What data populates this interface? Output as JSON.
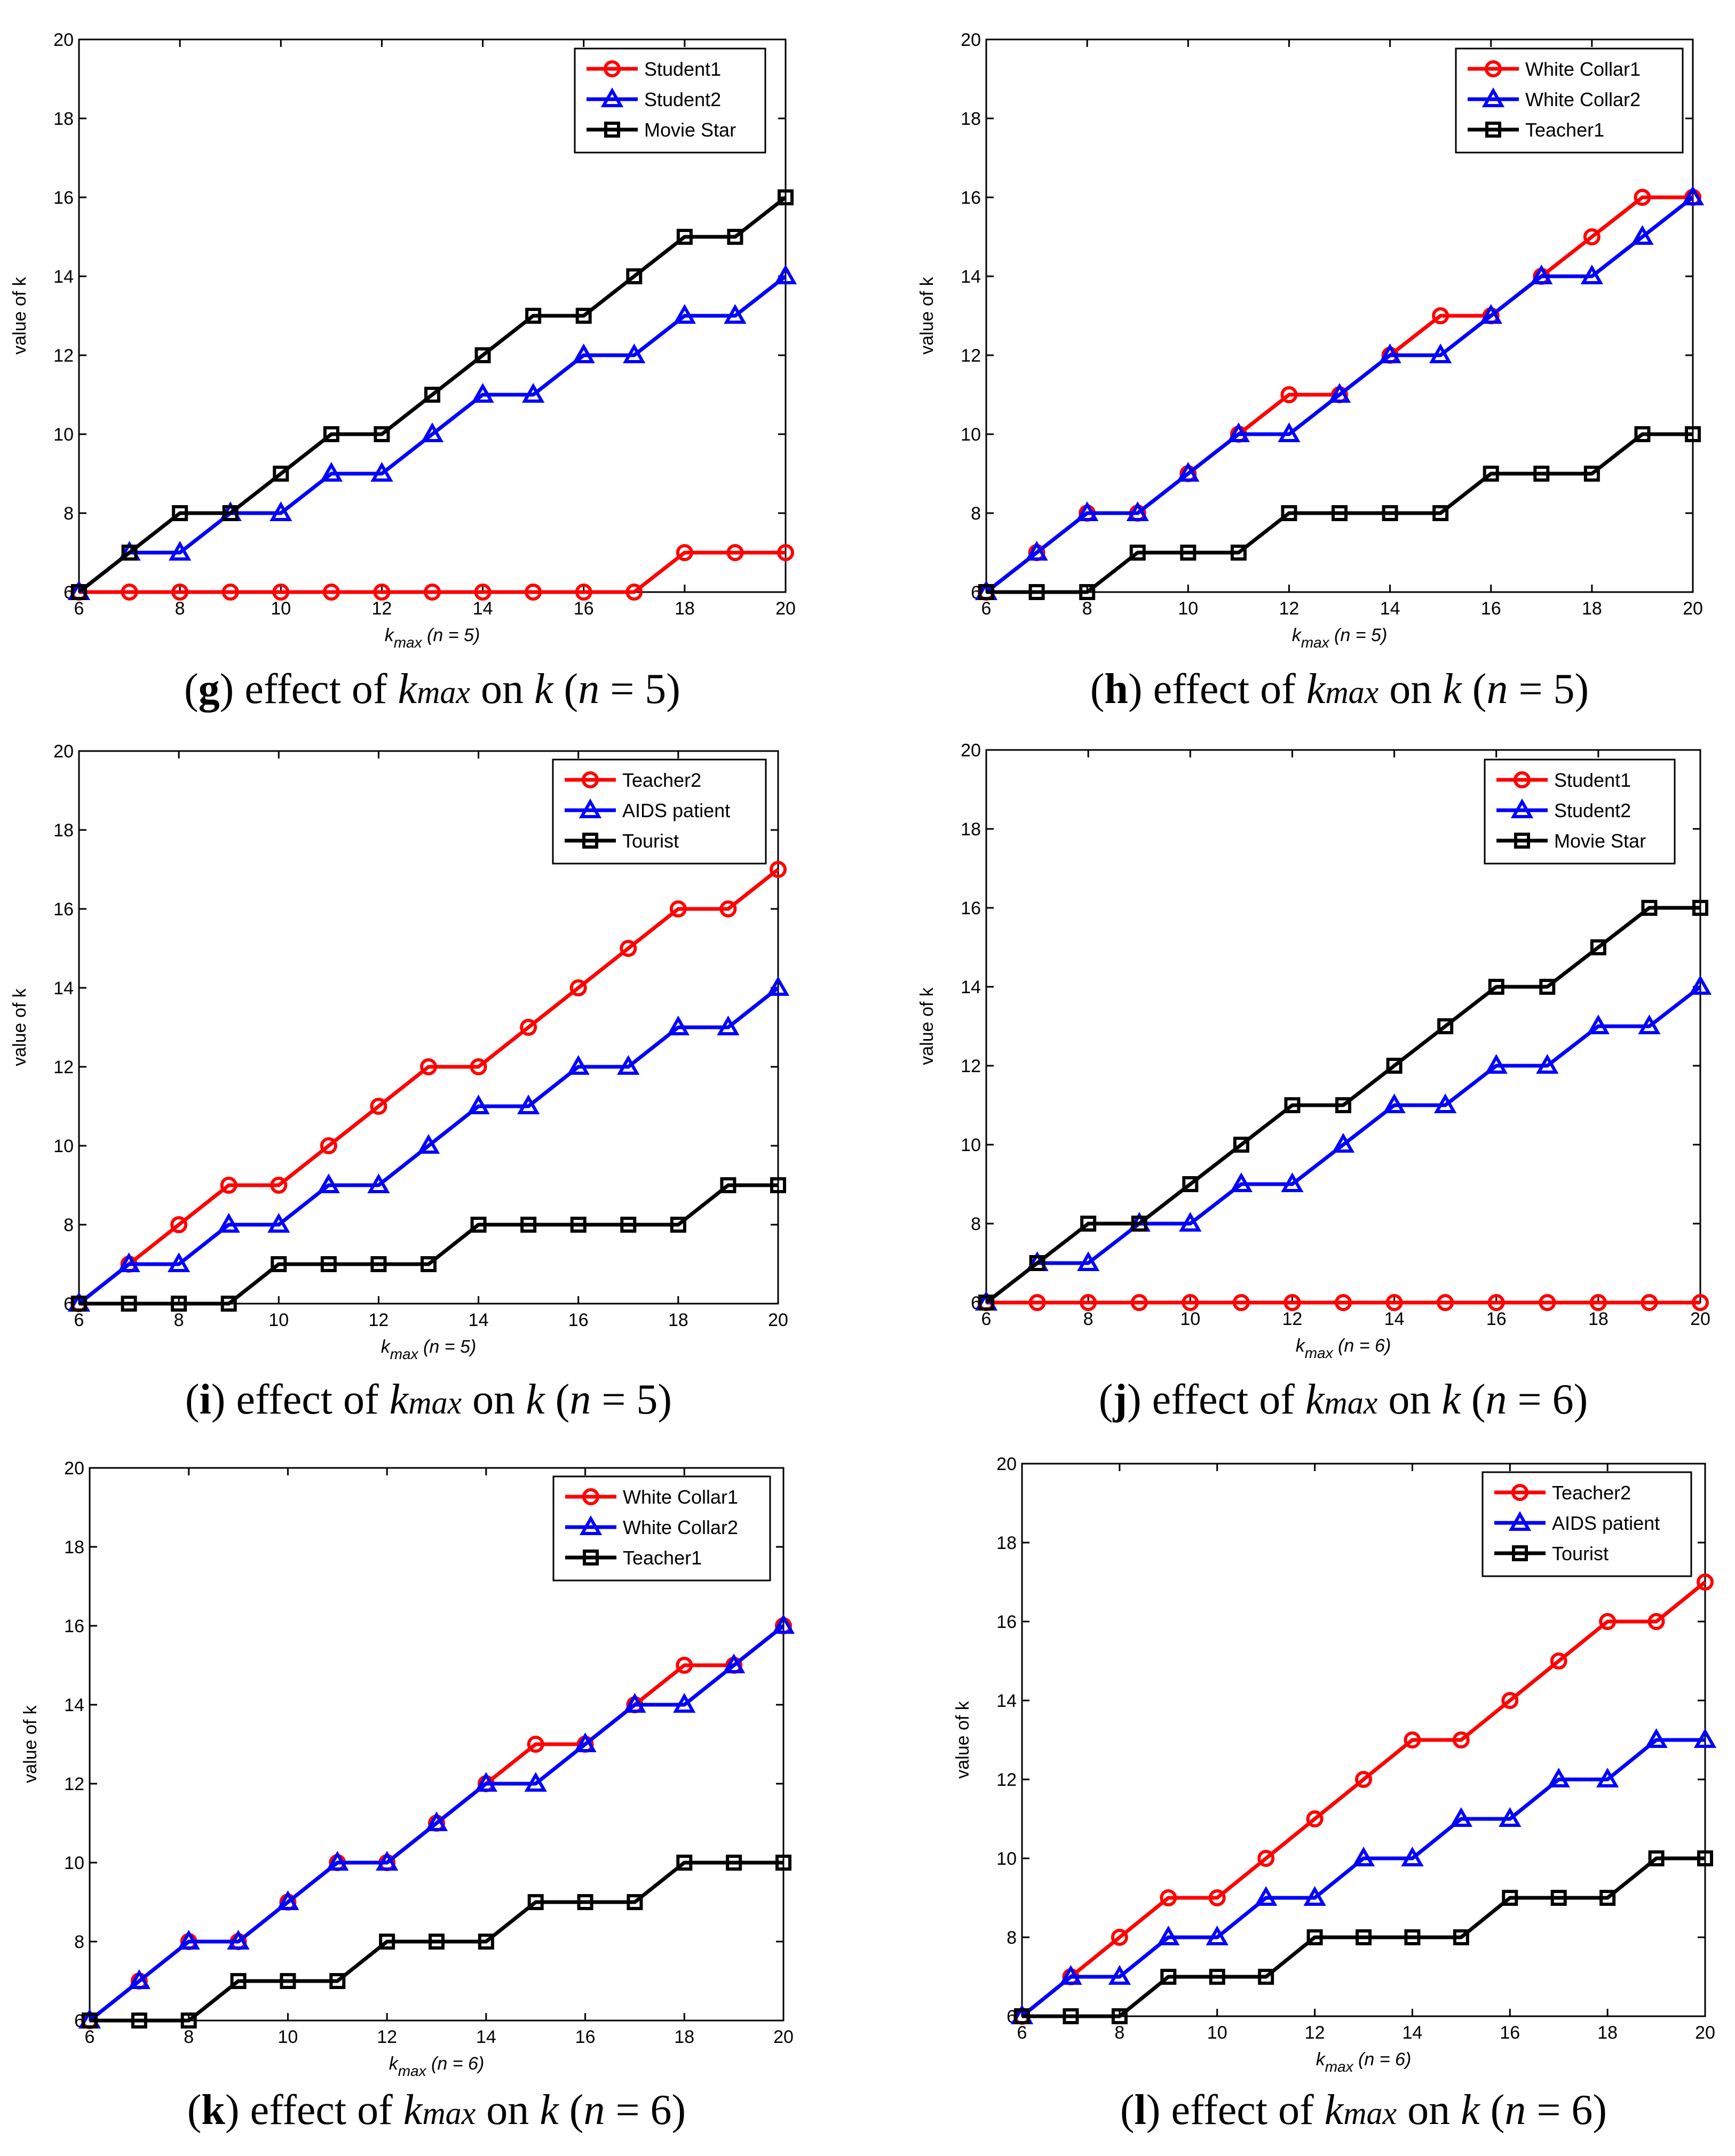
{
  "figure": {
    "colors": {
      "red": "#ff0000",
      "blue": "#0000ff",
      "black": "#000000"
    },
    "marker_icons": [
      "circle-marker-icon",
      "triangle-marker-icon",
      "square-marker-icon"
    ]
  },
  "chart_data": [
    {
      "id": "g",
      "type": "line",
      "caption": {
        "letter": "g",
        "text_pre": ") effect of ",
        "kmax_k": "k",
        "kmax_sub": "max",
        "text_on": " on ",
        "k": "k",
        "paren_open": " (",
        "n": "n",
        "eq": " = 5)"
      },
      "xlabel": {
        "main": "k",
        "sub": "max",
        "rest": " (n = 5)"
      },
      "ylabel": "value of k",
      "xlim": [
        6,
        20
      ],
      "ylim": [
        6,
        20
      ],
      "xticks": [
        "6",
        "8",
        "10",
        "12",
        "14",
        "16",
        "18",
        "20"
      ],
      "yticks": [
        "6",
        "8",
        "10",
        "12",
        "14",
        "16",
        "18",
        "20"
      ],
      "legend_position": "top-right",
      "x": [
        6,
        7,
        8,
        9,
        10,
        11,
        12,
        13,
        14,
        15,
        16,
        17,
        18,
        19,
        20
      ],
      "series": [
        {
          "name": "Student1",
          "color": "#ff0000",
          "marker": "circle",
          "values": [
            6,
            6,
            6,
            6,
            6,
            6,
            6,
            6,
            6,
            6,
            6,
            6,
            7,
            7,
            7
          ]
        },
        {
          "name": "Student2",
          "color": "#0000ff",
          "marker": "triangle",
          "values": [
            6,
            7,
            7,
            8,
            8,
            9,
            9,
            10,
            11,
            11,
            12,
            12,
            13,
            13,
            14
          ]
        },
        {
          "name": "Movie Star",
          "color": "#000000",
          "marker": "square",
          "values": [
            6,
            7,
            8,
            8,
            9,
            10,
            10,
            11,
            12,
            13,
            13,
            14,
            15,
            15,
            16
          ]
        }
      ]
    },
    {
      "id": "h",
      "type": "line",
      "caption": {
        "letter": "h",
        "text_pre": ") effect of ",
        "kmax_k": "k",
        "kmax_sub": "max",
        "text_on": " on ",
        "k": "k",
        "paren_open": " (",
        "n": "n",
        "eq": " = 5)"
      },
      "xlabel": {
        "main": "k",
        "sub": "max",
        "rest": " (n = 5)"
      },
      "ylabel": "value of k",
      "xlim": [
        6,
        20
      ],
      "ylim": [
        6,
        20
      ],
      "xticks": [
        "6",
        "8",
        "10",
        "12",
        "14",
        "16",
        "18",
        "20"
      ],
      "yticks": [
        "6",
        "8",
        "10",
        "12",
        "14",
        "16",
        "18",
        "20"
      ],
      "legend_position": "top-right",
      "x": [
        6,
        7,
        8,
        9,
        10,
        11,
        12,
        13,
        14,
        15,
        16,
        17,
        18,
        19,
        20
      ],
      "series": [
        {
          "name": "White Collar1",
          "color": "#ff0000",
          "marker": "circle",
          "values": [
            6,
            7,
            8,
            8,
            9,
            10,
            11,
            11,
            12,
            13,
            13,
            14,
            15,
            16,
            16
          ]
        },
        {
          "name": "White Collar2",
          "color": "#0000ff",
          "marker": "triangle",
          "values": [
            6,
            7,
            8,
            8,
            9,
            10,
            10,
            11,
            12,
            12,
            13,
            14,
            14,
            15,
            16
          ]
        },
        {
          "name": "Teacher1",
          "color": "#000000",
          "marker": "square",
          "values": [
            6,
            6,
            6,
            7,
            7,
            7,
            8,
            8,
            8,
            8,
            9,
            9,
            9,
            10,
            10
          ]
        }
      ]
    },
    {
      "id": "i",
      "type": "line",
      "caption": {
        "letter": "i",
        "text_pre": ") effect of ",
        "kmax_k": "k",
        "kmax_sub": "max",
        "text_on": " on ",
        "k": "k",
        "paren_open": " (",
        "n": "n",
        "eq": " = 5)"
      },
      "xlabel": {
        "main": "k",
        "sub": "max",
        "rest": " (n = 5)"
      },
      "ylabel": "value of k",
      "xlim": [
        6,
        20
      ],
      "ylim": [
        6,
        20
      ],
      "xticks": [
        "6",
        "8",
        "10",
        "12",
        "14",
        "16",
        "18",
        "20"
      ],
      "yticks": [
        "6",
        "8",
        "10",
        "12",
        "14",
        "16",
        "18",
        "20"
      ],
      "legend_position": "top-right",
      "x": [
        6,
        7,
        8,
        9,
        10,
        11,
        12,
        13,
        14,
        15,
        16,
        17,
        18,
        19,
        20
      ],
      "series": [
        {
          "name": "Teacher2",
          "color": "#ff0000",
          "marker": "circle",
          "values": [
            6,
            7,
            8,
            9,
            9,
            10,
            11,
            12,
            12,
            13,
            14,
            15,
            16,
            16,
            17
          ]
        },
        {
          "name": "AIDS patient",
          "color": "#0000ff",
          "marker": "triangle",
          "values": [
            6,
            7,
            7,
            8,
            8,
            9,
            9,
            10,
            11,
            11,
            12,
            12,
            13,
            13,
            14
          ]
        },
        {
          "name": "Tourist",
          "color": "#000000",
          "marker": "square",
          "values": [
            6,
            6,
            6,
            6,
            7,
            7,
            7,
            7,
            8,
            8,
            8,
            8,
            8,
            9,
            9
          ]
        }
      ]
    },
    {
      "id": "j",
      "type": "line",
      "caption": {
        "letter": "j",
        "text_pre": ") effect of ",
        "kmax_k": "k",
        "kmax_sub": "max",
        "text_on": " on ",
        "k": "k",
        "paren_open": " (",
        "n": "n",
        "eq": " = 6)"
      },
      "xlabel": {
        "main": "k",
        "sub": "max",
        "rest": " (n = 6)"
      },
      "ylabel": "value of k",
      "xlim": [
        6,
        20
      ],
      "ylim": [
        6,
        20
      ],
      "xticks": [
        "6",
        "8",
        "10",
        "12",
        "14",
        "16",
        "18",
        "20"
      ],
      "yticks": [
        "6",
        "8",
        "10",
        "12",
        "14",
        "16",
        "18",
        "20"
      ],
      "legend_position": "top-right",
      "x": [
        6,
        7,
        8,
        9,
        10,
        11,
        12,
        13,
        14,
        15,
        16,
        17,
        18,
        19,
        20
      ],
      "series": [
        {
          "name": "Student1",
          "color": "#ff0000",
          "marker": "circle",
          "values": [
            6,
            6,
            6,
            6,
            6,
            6,
            6,
            6,
            6,
            6,
            6,
            6,
            6,
            6,
            6
          ]
        },
        {
          "name": "Student2",
          "color": "#0000ff",
          "marker": "triangle",
          "values": [
            6,
            7,
            7,
            8,
            8,
            9,
            9,
            10,
            11,
            11,
            12,
            12,
            13,
            13,
            14
          ]
        },
        {
          "name": "Movie Star",
          "color": "#000000",
          "marker": "square",
          "values": [
            6,
            7,
            8,
            8,
            9,
            10,
            11,
            11,
            12,
            13,
            14,
            14,
            15,
            16,
            16
          ]
        }
      ]
    },
    {
      "id": "k",
      "type": "line",
      "caption": {
        "letter": "k",
        "text_pre": ") effect of ",
        "kmax_k": "k",
        "kmax_sub": "max",
        "text_on": " on ",
        "k": "k",
        "paren_open": " (",
        "n": "n",
        "eq": " = 6)"
      },
      "xlabel": {
        "main": "k",
        "sub": "max",
        "rest": " (n = 6)"
      },
      "ylabel": "value of k",
      "xlim": [
        6,
        20
      ],
      "ylim": [
        6,
        20
      ],
      "xticks": [
        "6",
        "8",
        "10",
        "12",
        "14",
        "16",
        "18",
        "20"
      ],
      "yticks": [
        "6",
        "8",
        "10",
        "12",
        "14",
        "16",
        "18",
        "20"
      ],
      "legend_position": "top-right",
      "x": [
        6,
        7,
        8,
        9,
        10,
        11,
        12,
        13,
        14,
        15,
        16,
        17,
        18,
        19,
        20
      ],
      "series": [
        {
          "name": "White Collar1",
          "color": "#ff0000",
          "marker": "circle",
          "values": [
            6,
            7,
            8,
            8,
            9,
            10,
            10,
            11,
            12,
            13,
            13,
            14,
            15,
            15,
            16
          ]
        },
        {
          "name": "White Collar2",
          "color": "#0000ff",
          "marker": "triangle",
          "values": [
            6,
            7,
            8,
            8,
            9,
            10,
            10,
            11,
            12,
            12,
            13,
            14,
            14,
            15,
            16
          ]
        },
        {
          "name": "Teacher1",
          "color": "#000000",
          "marker": "square",
          "values": [
            6,
            6,
            6,
            7,
            7,
            7,
            8,
            8,
            8,
            9,
            9,
            9,
            10,
            10,
            10
          ]
        }
      ]
    },
    {
      "id": "l",
      "type": "line",
      "caption": {
        "letter": "l",
        "text_pre": ") effect of ",
        "kmax_k": "k",
        "kmax_sub": "max",
        "text_on": " on ",
        "k": "k",
        "paren_open": " (",
        "n": "n",
        "eq": " = 6)"
      },
      "xlabel": {
        "main": "k",
        "sub": "max",
        "rest": " (n = 6)"
      },
      "ylabel": "value of k",
      "xlim": [
        6,
        20
      ],
      "ylim": [
        6,
        20
      ],
      "xticks": [
        "6",
        "8",
        "10",
        "12",
        "14",
        "16",
        "18",
        "20"
      ],
      "yticks": [
        "6",
        "8",
        "10",
        "12",
        "14",
        "16",
        "18",
        "20"
      ],
      "legend_position": "top-right",
      "x": [
        6,
        7,
        8,
        9,
        10,
        11,
        12,
        13,
        14,
        15,
        16,
        17,
        18,
        19,
        20
      ],
      "series": [
        {
          "name": "Teacher2",
          "color": "#ff0000",
          "marker": "circle",
          "values": [
            6,
            7,
            8,
            9,
            9,
            10,
            11,
            12,
            13,
            13,
            14,
            15,
            16,
            16,
            17
          ]
        },
        {
          "name": "AIDS patient",
          "color": "#0000ff",
          "marker": "triangle",
          "values": [
            6,
            7,
            7,
            8,
            8,
            9,
            9,
            10,
            10,
            11,
            11,
            12,
            12,
            13,
            13
          ]
        },
        {
          "name": "Tourist",
          "color": "#000000",
          "marker": "square",
          "values": [
            6,
            6,
            6,
            7,
            7,
            7,
            8,
            8,
            8,
            8,
            9,
            9,
            9,
            10,
            10
          ]
        }
      ]
    }
  ]
}
